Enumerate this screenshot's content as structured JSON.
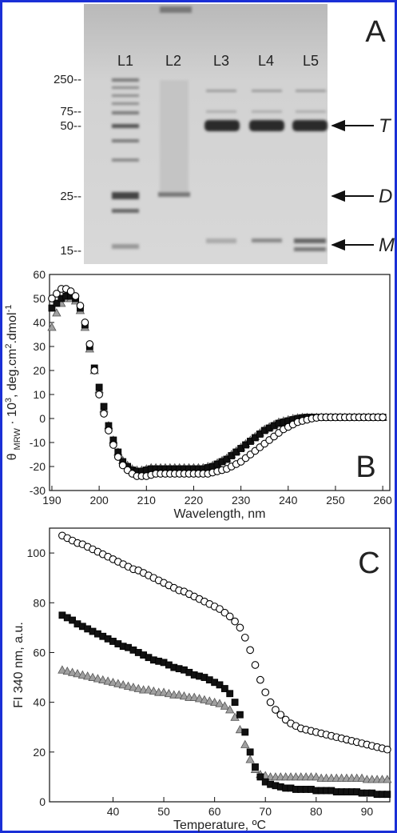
{
  "gel": {
    "panel_label": "A",
    "lanes": [
      "L1",
      "L2",
      "L3",
      "L4",
      "L5"
    ],
    "markers": [
      "250--",
      "75--",
      "50--",
      "25--",
      "15--"
    ],
    "bands": [
      "T",
      "D",
      "M"
    ]
  },
  "chart_data": [
    {
      "type": "scatter",
      "panel_label": "B",
      "xlabel": "Wavelength, nm",
      "ylabel_parts": [
        {
          "text": "θ"
        },
        {
          "text": "MRW",
          "shift": "sub"
        },
        {
          "text": " · 10"
        },
        {
          "text": "3",
          "shift": "sup"
        },
        {
          "text": ", deg.cm"
        },
        {
          "text": "2",
          "shift": "sup"
        },
        {
          "text": ".dmol"
        },
        {
          "text": "-1",
          "shift": "sup"
        }
      ],
      "xlim": [
        189.5,
        261.5
      ],
      "xticks": [
        190,
        200,
        210,
        220,
        230,
        240,
        250,
        260
      ],
      "ylim": [
        -30,
        60
      ],
      "yticks": [
        -30,
        -20,
        -10,
        0,
        10,
        20,
        30,
        40,
        50,
        60
      ],
      "x": [
        190,
        191,
        192,
        193,
        194,
        195,
        196,
        197,
        198,
        199,
        200,
        201,
        202,
        203,
        204,
        205,
        206,
        207,
        208,
        209,
        210,
        211,
        212,
        213,
        214,
        215,
        216,
        217,
        218,
        219,
        220,
        221,
        222,
        223,
        224,
        225,
        226,
        227,
        228,
        229,
        230,
        231,
        232,
        233,
        234,
        235,
        236,
        237,
        238,
        239,
        240,
        241,
        242,
        243,
        244,
        245,
        246,
        247,
        248,
        249,
        250,
        251,
        252,
        253,
        254,
        255,
        256,
        257,
        258,
        259,
        260
      ],
      "series": [
        {
          "marker": "circle",
          "color": "#ffffff",
          "edgecolor": "#000000",
          "values": [
            50,
            52,
            54,
            54,
            53,
            51,
            47,
            40,
            31,
            20,
            10,
            2,
            -5,
            -11,
            -16,
            -19.5,
            -21.5,
            -23,
            -24,
            -24,
            -24,
            -23.5,
            -23,
            -23,
            -23,
            -23,
            -23,
            -23,
            -23,
            -23,
            -23,
            -23,
            -23,
            -23,
            -22.5,
            -22,
            -21.5,
            -21,
            -20,
            -19,
            -18,
            -16.5,
            -15,
            -13.5,
            -12,
            -10.5,
            -9,
            -7.5,
            -6,
            -4.5,
            -3.5,
            -2.5,
            -1.5,
            -1,
            -0.5,
            0,
            0.3,
            0.5,
            0.5,
            0.5,
            0.5,
            0.5,
            0.5,
            0.5,
            0.5,
            0.5,
            0.5,
            0.5,
            0.5,
            0.5,
            0.5
          ]
        },
        {
          "marker": "square",
          "color": "#111111",
          "edgecolor": "#000000",
          "values": [
            46,
            48,
            50,
            51,
            51,
            50,
            46,
            39,
            30,
            21,
            13,
            5,
            -3,
            -9,
            -14,
            -18,
            -20,
            -21.5,
            -22,
            -22,
            -21.5,
            -21,
            -21,
            -21,
            -21,
            -21,
            -21,
            -21,
            -21,
            -21,
            -21,
            -21,
            -21,
            -20.5,
            -20,
            -19,
            -18,
            -17,
            -15.5,
            -14,
            -12.5,
            -11,
            -9.5,
            -8,
            -6.5,
            -5,
            -4,
            -3,
            -2,
            -1.5,
            -1,
            -0.5,
            0,
            0.3,
            0.5,
            0.5,
            0.5,
            0.5,
            0.5,
            0.5,
            0.5,
            0.5,
            0.5,
            0.5,
            0.5,
            0.5,
            0.5,
            0.5,
            0.5,
            0.5,
            0.5
          ]
        },
        {
          "marker": "triangle",
          "color": "#a0a0a0",
          "edgecolor": "#555555",
          "values": [
            38,
            44,
            48,
            50,
            50,
            49,
            45,
            38,
            29,
            20,
            12,
            4,
            -3,
            -9,
            -14,
            -17.5,
            -19.5,
            -21,
            -21.5,
            -21.5,
            -21,
            -20.5,
            -20.5,
            -20.5,
            -20.5,
            -20.5,
            -20.5,
            -20.5,
            -20.5,
            -20.5,
            -20.5,
            -20.5,
            -20.5,
            -20,
            -19.5,
            -18.5,
            -17.5,
            -16.5,
            -15,
            -13.5,
            -12,
            -10.5,
            -9,
            -7.5,
            -6,
            -4.5,
            -3.5,
            -2.5,
            -1.5,
            -1,
            -0.5,
            0,
            0.3,
            0.5,
            0.5,
            0.5,
            0.5,
            0.5,
            0.5,
            0.5,
            0.5,
            0.5,
            0.5,
            0.5,
            0.5,
            0.5,
            0.5,
            0.5,
            0.5,
            0.5,
            0.5
          ]
        }
      ]
    },
    {
      "type": "scatter",
      "panel_label": "C",
      "xlabel": "Temperature, ºC",
      "ylabel_parts": [
        {
          "text": "FI 340 nm, a.u."
        }
      ],
      "xlim": [
        27.5,
        94.5
      ],
      "xticks": [
        40,
        50,
        60,
        70,
        80,
        90
      ],
      "ylim": [
        0,
        110
      ],
      "yticks": [
        0,
        20,
        40,
        60,
        80,
        100
      ],
      "x": [
        30,
        31,
        32,
        33,
        34,
        35,
        36,
        37,
        38,
        39,
        40,
        41,
        42,
        43,
        44,
        45,
        46,
        47,
        48,
        49,
        50,
        51,
        52,
        53,
        54,
        55,
        56,
        57,
        58,
        59,
        60,
        61,
        62,
        63,
        64,
        65,
        66,
        67,
        68,
        69,
        70,
        71,
        72,
        73,
        74,
        75,
        76,
        77,
        78,
        79,
        80,
        81,
        82,
        83,
        84,
        85,
        86,
        87,
        88,
        89,
        90,
        91,
        92,
        93,
        94
      ],
      "series": [
        {
          "marker": "circle",
          "color": "#ffffff",
          "edgecolor": "#000000",
          "values": [
            107,
            106,
            105,
            104,
            103.5,
            102.5,
            101.5,
            100.5,
            99.5,
            98.5,
            97.5,
            96.5,
            95.5,
            94.5,
            93.5,
            93,
            92,
            91,
            90,
            89,
            88,
            87,
            86,
            85,
            84.5,
            83.5,
            82.5,
            81.5,
            80.5,
            79.5,
            78.5,
            77.5,
            76,
            74.5,
            72.5,
            70,
            66,
            61,
            55,
            49,
            44,
            40,
            37,
            35,
            33,
            31.5,
            30.5,
            29.5,
            29,
            28.5,
            28,
            27.5,
            27,
            26.5,
            26,
            25.5,
            25,
            24.5,
            24,
            23.5,
            23,
            22.5,
            22,
            21.5,
            21
          ]
        },
        {
          "marker": "square",
          "color": "#111111",
          "edgecolor": "#000000",
          "values": [
            75,
            74,
            73,
            71.5,
            70.5,
            69.5,
            68.5,
            67.5,
            66.5,
            65.5,
            64.5,
            63.5,
            62.5,
            62,
            61,
            60,
            59,
            58,
            57,
            56.5,
            56,
            55,
            54,
            53.5,
            53,
            52,
            51,
            50.5,
            50,
            49,
            48,
            47,
            45.5,
            43.5,
            40,
            35,
            28,
            20,
            14,
            10,
            8,
            7,
            6.5,
            6,
            5.5,
            5.5,
            5,
            5,
            5,
            5,
            4.5,
            4.5,
            4.5,
            4.5,
            4,
            4,
            4,
            4,
            4,
            3.5,
            3.5,
            3.5,
            3,
            3,
            3
          ]
        },
        {
          "marker": "triangle",
          "color": "#a0a0a0",
          "edgecolor": "#555555",
          "values": [
            53,
            52.5,
            52,
            51.5,
            51,
            50.5,
            50,
            49.5,
            49,
            48.5,
            48,
            47.5,
            47,
            46.5,
            46,
            45.5,
            45,
            45,
            44.5,
            44,
            44,
            43.5,
            43,
            43,
            42.5,
            42,
            42,
            41.5,
            41,
            40.5,
            40,
            39.5,
            38.5,
            37,
            34,
            29,
            23,
            17,
            13,
            11,
            10.5,
            10,
            10,
            10,
            10,
            10,
            10,
            10,
            10,
            10,
            10,
            9.5,
            9.5,
            9.5,
            9.5,
            9.5,
            9.5,
            9.5,
            9.5,
            9.5,
            9,
            9,
            9,
            9,
            9
          ]
        }
      ]
    }
  ]
}
